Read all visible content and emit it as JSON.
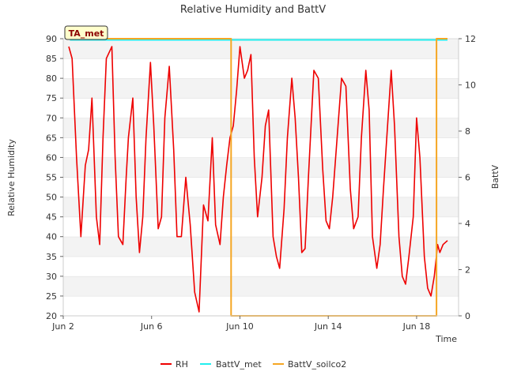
{
  "chart_data": {
    "type": "line",
    "title": "Relative Humidity and BattV",
    "xlabel": "Time",
    "ylabel": "Relative Humidity",
    "y2label": "BattV",
    "badge": "TA_met",
    "xlim": [
      2.0,
      19.9
    ],
    "ylim": [
      20,
      90
    ],
    "y2lim": [
      0,
      12
    ],
    "x_ticks": [
      {
        "value": 2,
        "label": "Jun 2"
      },
      {
        "value": 6,
        "label": "Jun 6"
      },
      {
        "value": 10,
        "label": "Jun 10"
      },
      {
        "value": 14,
        "label": "Jun 14"
      },
      {
        "value": 18,
        "label": "Jun 18"
      }
    ],
    "y_ticks": [
      20,
      25,
      30,
      35,
      40,
      45,
      50,
      55,
      60,
      65,
      70,
      75,
      80,
      85,
      90
    ],
    "y2_ticks": [
      0,
      2,
      4,
      6,
      8,
      10,
      12
    ],
    "series": [
      {
        "name": "RH",
        "color": "#ee0000",
        "axis": "left",
        "x": [
          2.25,
          2.4,
          2.6,
          2.8,
          3.0,
          3.15,
          3.3,
          3.5,
          3.65,
          3.8,
          3.95,
          4.2,
          4.35,
          4.5,
          4.7,
          4.85,
          4.95,
          5.15,
          5.3,
          5.45,
          5.6,
          5.75,
          5.95,
          6.1,
          6.3,
          6.45,
          6.6,
          6.8,
          7.0,
          7.15,
          7.35,
          7.55,
          7.75,
          7.95,
          8.15,
          8.35,
          8.55,
          8.75,
          8.9,
          9.1,
          9.25,
          9.4,
          9.55,
          9.7,
          9.85,
          10.0,
          10.2,
          10.35,
          10.5,
          10.65,
          10.8,
          11.0,
          11.15,
          11.3,
          11.5,
          11.65,
          11.8,
          12.0,
          12.15,
          12.35,
          12.5,
          12.65,
          12.8,
          12.95,
          13.1,
          13.35,
          13.55,
          13.75,
          13.9,
          14.05,
          14.2,
          14.4,
          14.6,
          14.8,
          15.0,
          15.15,
          15.35,
          15.5,
          15.7,
          15.85,
          16.0,
          16.2,
          16.35,
          16.5,
          16.65,
          16.85,
          17.0,
          17.2,
          17.35,
          17.5,
          17.65,
          17.85,
          18.0,
          18.15,
          18.35,
          18.5,
          18.65,
          18.8,
          18.95,
          19.05,
          19.2,
          19.4
        ],
        "values": [
          88,
          85,
          60,
          40,
          58,
          62,
          75,
          45,
          38,
          65,
          85,
          88,
          60,
          40,
          38,
          55,
          65,
          75,
          50,
          36,
          45,
          65,
          84,
          68,
          42,
          45,
          70,
          83,
          62,
          40,
          40,
          55,
          43,
          26,
          21,
          48,
          44,
          65,
          43,
          38,
          50,
          58,
          65,
          68,
          77,
          88,
          80,
          82,
          86,
          60,
          45,
          55,
          68,
          72,
          40,
          35,
          32,
          47,
          65,
          80,
          70,
          55,
          36,
          37,
          55,
          82,
          80,
          57,
          44,
          42,
          50,
          65,
          80,
          78,
          52,
          42,
          45,
          65,
          82,
          72,
          40,
          32,
          38,
          52,
          65,
          82,
          68,
          40,
          30,
          28,
          35,
          45,
          70,
          60,
          35,
          27,
          25,
          30,
          38,
          36,
          38,
          39
        ]
      },
      {
        "name": "BattV_met",
        "color": "#22eeee",
        "axis": "right",
        "x": [
          2.3,
          19.4
        ],
        "values": [
          11.95,
          11.95
        ]
      },
      {
        "name": "BattV_soilco2",
        "color": "#f5a623",
        "axis": "right",
        "x": [
          2.3,
          9.6,
          9.6,
          18.9,
          18.9,
          19.4
        ],
        "values": [
          12.0,
          12.0,
          0.0,
          0.0,
          12.0,
          12.0
        ]
      }
    ],
    "legend": [
      "RH",
      "BattV_met",
      "BattV_soilco2"
    ],
    "legend_position": "bottom-center",
    "grid": "horizontal alternating bands"
  }
}
